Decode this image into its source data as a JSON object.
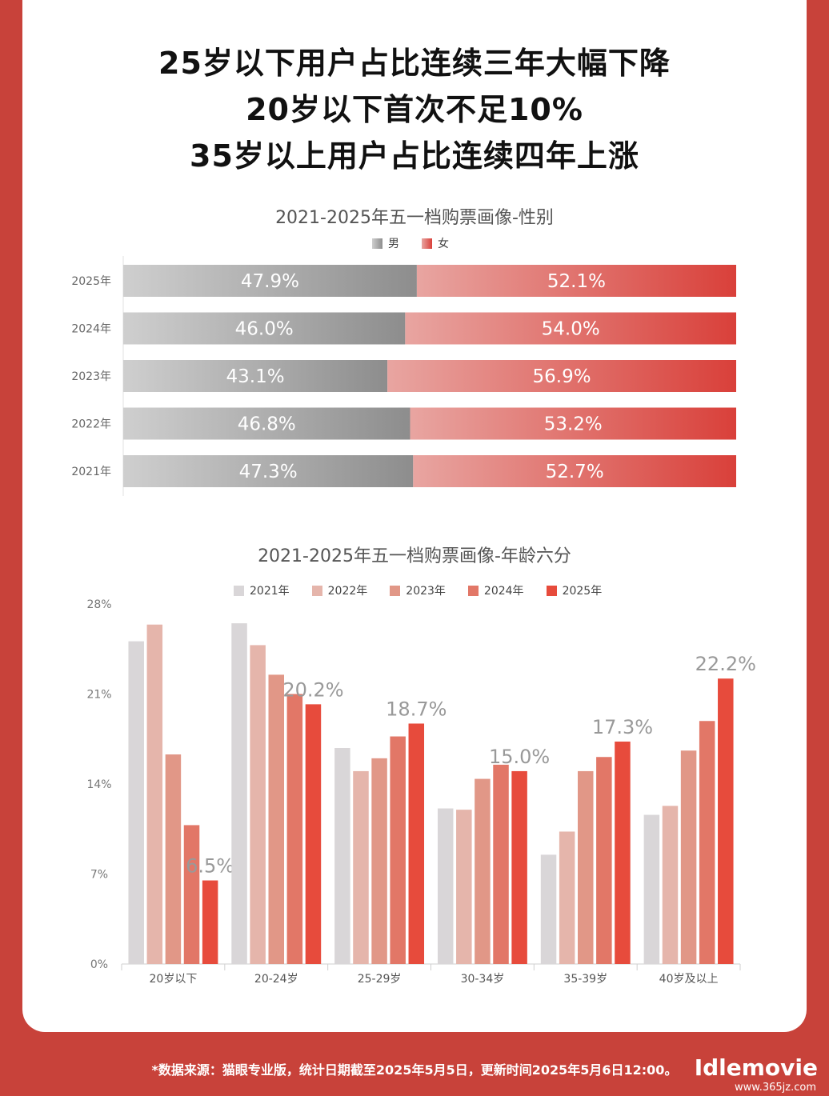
{
  "headlines": [
    "25岁以下用户占比连续三年大幅下降",
    "20岁以下首次不足10%",
    "35岁以上用户占比连续四年上涨"
  ],
  "colors": {
    "male_from": "#cfcfcf",
    "male_to": "#8d8d8d",
    "female_from": "#e8a5a1",
    "female_to": "#d9403a",
    "age_series": [
      "#d9d6d8",
      "#e5b5ab",
      "#e19787",
      "#e27767",
      "#e74b3c"
    ]
  },
  "gender_chart": {
    "title": "2021-2025年五一档购票画像-性别",
    "legend": [
      "男",
      "女"
    ]
  },
  "age_chart": {
    "title": "2021-2025年五一档购票画像-年龄六分",
    "legend": [
      "2021年",
      "2022年",
      "2023年",
      "2024年",
      "2025年"
    ],
    "yticks": [
      "28%",
      "21%",
      "14%",
      "7%",
      "0%"
    ]
  },
  "chart_data": [
    {
      "type": "bar",
      "orientation": "horizontal-stacked",
      "categories": [
        "2025年",
        "2024年",
        "2023年",
        "2022年",
        "2021年"
      ],
      "series": [
        {
          "name": "男",
          "values": [
            47.9,
            46.0,
            43.1,
            46.8,
            47.3
          ],
          "labels": [
            "47.9%",
            "46.0%",
            "43.1%",
            "46.8%",
            "47.3%"
          ]
        },
        {
          "name": "女",
          "values": [
            52.1,
            54.0,
            56.9,
            53.2,
            52.7
          ],
          "labels": [
            "52.1%",
            "54.0%",
            "56.9%",
            "53.2%",
            "52.7%"
          ]
        }
      ],
      "title": "2021-2025年五一档购票画像-性别",
      "xlim": [
        0,
        100
      ],
      "legend": "top-center"
    },
    {
      "type": "bar",
      "categories": [
        "20岁以下",
        "20-24岁",
        "25-29岁",
        "30-34岁",
        "35-39岁",
        "40岁及以上"
      ],
      "series": [
        {
          "name": "2021年",
          "values": [
            25.1,
            26.5,
            16.8,
            12.1,
            8.5,
            11.6
          ]
        },
        {
          "name": "2022年",
          "values": [
            26.4,
            24.8,
            15.0,
            12.0,
            10.3,
            12.3
          ]
        },
        {
          "name": "2023年",
          "values": [
            16.3,
            22.5,
            16.0,
            14.4,
            15.0,
            16.6
          ]
        },
        {
          "name": "2024年",
          "values": [
            10.8,
            21.0,
            17.7,
            15.5,
            16.1,
            18.9
          ]
        },
        {
          "name": "2025年",
          "values": [
            6.5,
            20.2,
            18.7,
            15.0,
            17.3,
            22.2
          ]
        }
      ],
      "data_labels": [
        "6.5%",
        "20.2%",
        "18.7%",
        "15.0%",
        "17.3%",
        "22.2%"
      ],
      "title": "2021-2025年五一档购票画像-年龄六分",
      "ylim": [
        0,
        28
      ],
      "legend": "top-center"
    }
  ],
  "footer": "*数据来源：猫眼专业版，统计日期截至2025年5月5日，更新时间2025年5月6日12:00。",
  "watermark": "Idlemovie",
  "watermark_url": "www.365jz.com"
}
